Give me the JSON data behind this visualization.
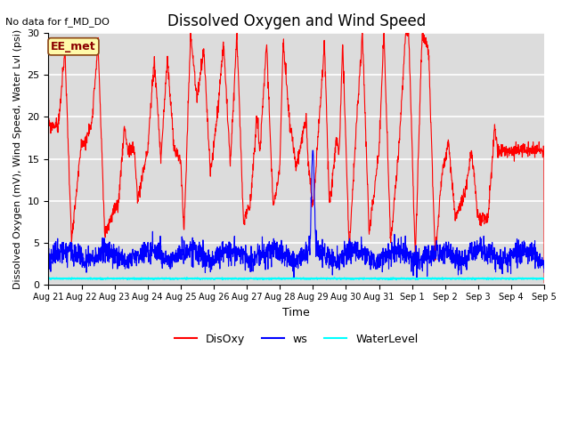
{
  "title": "Dissolved Oxygen and Wind Speed",
  "no_data_text": "No data for f_MD_DO",
  "ylabel": "Dissolved Oxygen (mV), Wind Speed, Water Lvl (psi)",
  "xlabel": "Time",
  "legend_labels": [
    "DisOxy",
    "ws",
    "WaterLevel"
  ],
  "legend_colors": [
    "red",
    "blue",
    "cyan"
  ],
  "annotation_text": "EE_met",
  "ylim": [
    0,
    30
  ],
  "background_color": "#dcdcdc",
  "grid_color": "white",
  "x_tick_labels": [
    "Aug 21",
    "Aug 22",
    "Aug 23",
    "Aug 24",
    "Aug 25",
    "Aug 26",
    "Aug 27",
    "Aug 28",
    "Aug 29",
    "Aug 30",
    "Aug 31",
    "Sep 1",
    "Sep 2",
    "Sep 3",
    "Sep 4",
    "Sep 5"
  ],
  "disoxy_color": "red",
  "ws_color": "blue",
  "wl_color": "cyan",
  "title_fontsize": 12,
  "ylabel_fontsize": 8,
  "xlabel_fontsize": 9,
  "tick_fontsize": 7,
  "legend_fontsize": 9,
  "nodata_fontsize": 8
}
